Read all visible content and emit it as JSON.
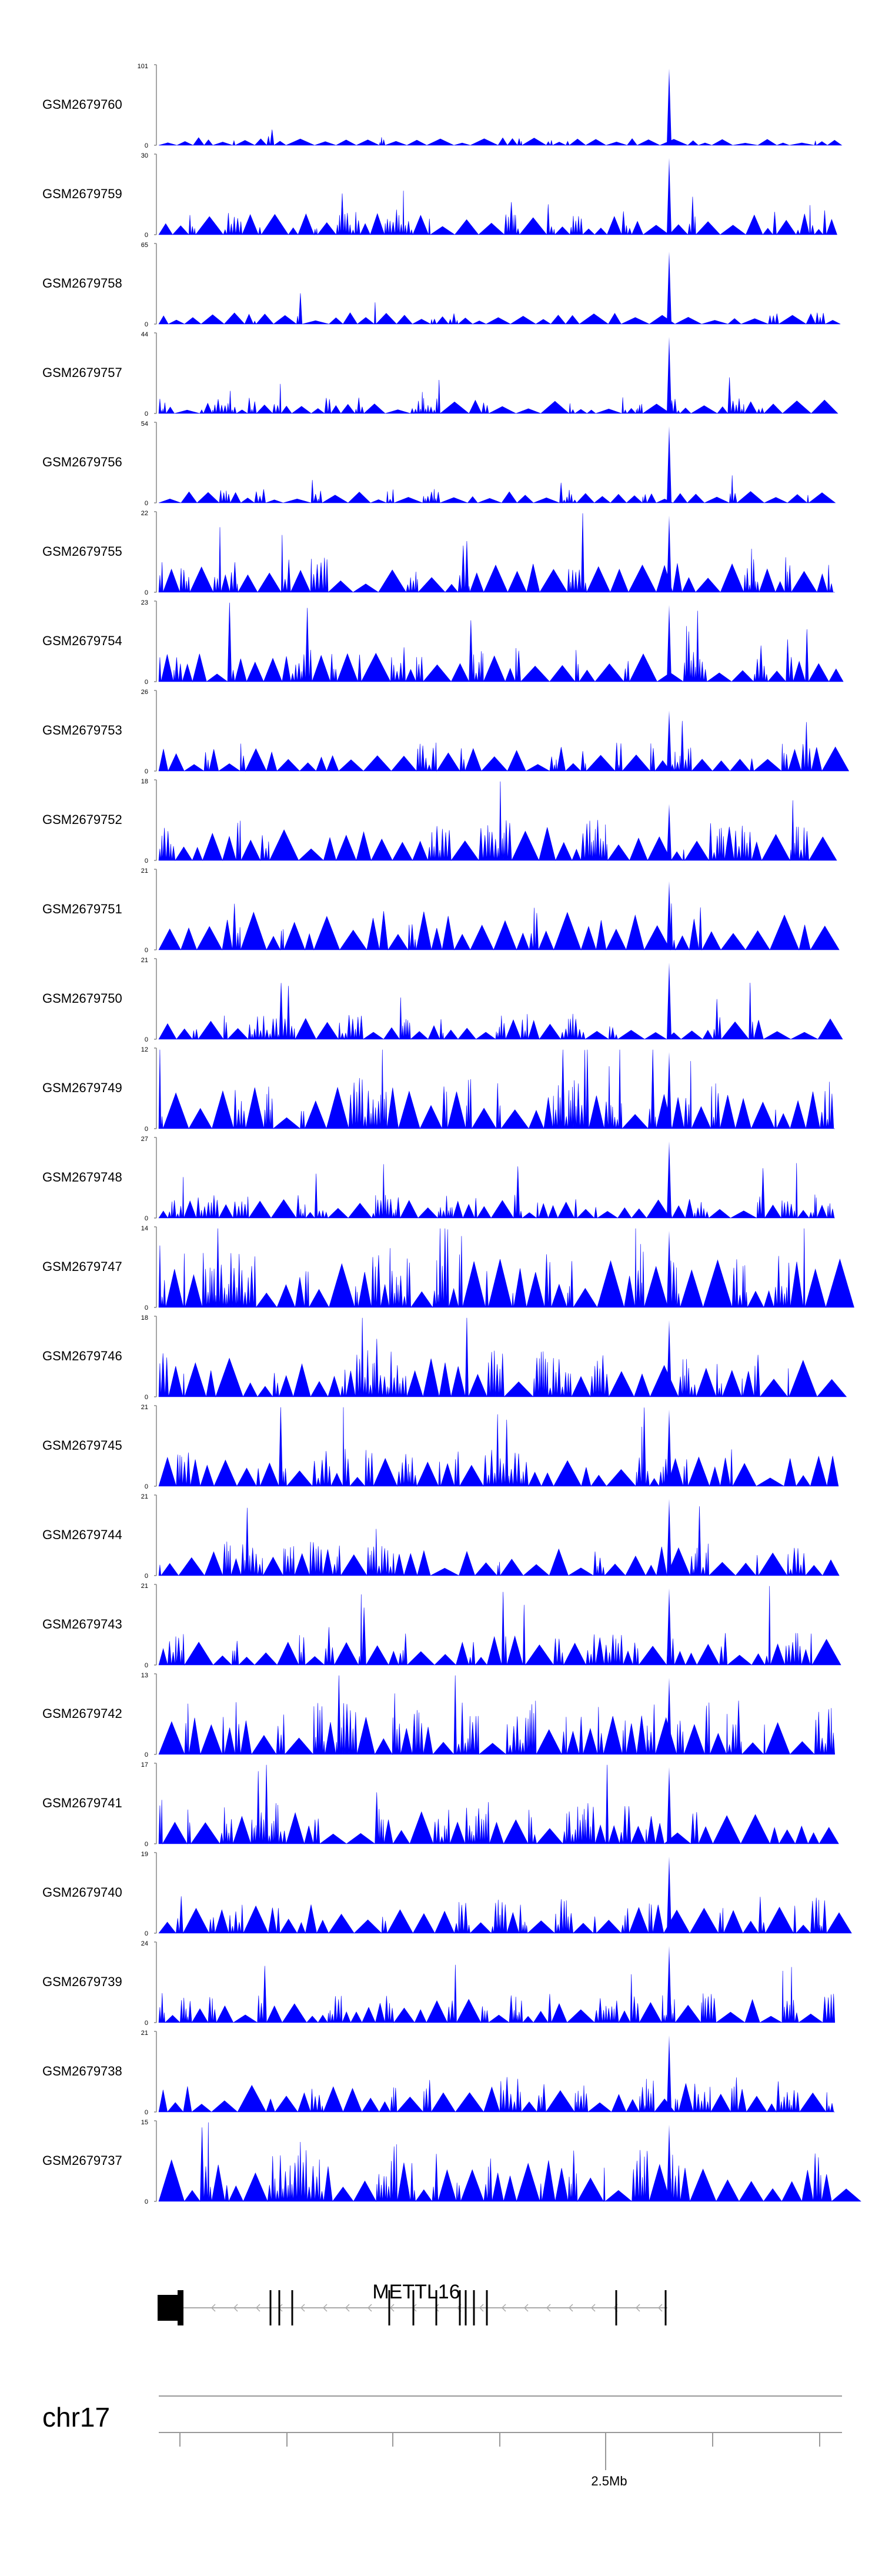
{
  "chart_data": {
    "type": "area",
    "title": "",
    "color": "#0000ff",
    "axis_color": "#888888",
    "series": [
      {
        "name": "GSM2679760",
        "ymax": 101,
        "ymin": 0,
        "peak_frac": 0.95,
        "density": 0.15,
        "bump_frac": 0.08,
        "seed": 60
      },
      {
        "name": "GSM2679759",
        "ymax": 30,
        "ymin": 0,
        "peak_frac": 0.95,
        "density": 0.45,
        "bump_frac": 0.22,
        "seed": 59
      },
      {
        "name": "GSM2679758",
        "ymax": 65,
        "ymin": 0,
        "peak_frac": 0.9,
        "density": 0.15,
        "bump_frac": 0.12,
        "seed": 58
      },
      {
        "name": "GSM2679757",
        "ymax": 44,
        "ymin": 0,
        "peak_frac": 0.95,
        "density": 0.4,
        "bump_frac": 0.14,
        "seed": 57
      },
      {
        "name": "GSM2679756",
        "ymax": 54,
        "ymin": 0,
        "peak_frac": 0.95,
        "density": 0.3,
        "bump_frac": 0.12,
        "seed": 56
      },
      {
        "name": "GSM2679755",
        "ymax": 22,
        "ymin": 0,
        "peak_frac": 0.95,
        "density": 0.5,
        "bump_frac": 0.3,
        "seed": 55
      },
      {
        "name": "GSM2679754",
        "ymax": 23,
        "ymin": 0,
        "peak_frac": 0.95,
        "density": 0.5,
        "bump_frac": 0.3,
        "seed": 54
      },
      {
        "name": "GSM2679753",
        "ymax": 26,
        "ymin": 0,
        "peak_frac": 0.75,
        "density": 0.4,
        "bump_frac": 0.25,
        "seed": 53
      },
      {
        "name": "GSM2679752",
        "ymax": 18,
        "ymin": 0,
        "peak_frac": 0.7,
        "density": 0.55,
        "bump_frac": 0.35,
        "seed": 52
      },
      {
        "name": "GSM2679751",
        "ymax": 21,
        "ymin": 0,
        "peak_frac": 0.85,
        "density": 0.25,
        "bump_frac": 0.4,
        "seed": 51
      },
      {
        "name": "GSM2679750",
        "ymax": 21,
        "ymin": 0,
        "peak_frac": 0.95,
        "density": 0.55,
        "bump_frac": 0.22,
        "seed": 50
      },
      {
        "name": "GSM2679749",
        "ymax": 12,
        "ymin": 0,
        "peak_frac": 0.95,
        "density": 0.6,
        "bump_frac": 0.45,
        "seed": 49
      },
      {
        "name": "GSM2679748",
        "ymax": 27,
        "ymin": 0,
        "peak_frac": 0.95,
        "density": 0.5,
        "bump_frac": 0.2,
        "seed": 48
      },
      {
        "name": "GSM2679747",
        "ymax": 14,
        "ymin": 0,
        "peak_frac": 0.95,
        "density": 0.65,
        "bump_frac": 0.5,
        "seed": 47
      },
      {
        "name": "GSM2679746",
        "ymax": 18,
        "ymin": 0,
        "peak_frac": 0.95,
        "density": 0.55,
        "bump_frac": 0.4,
        "seed": 46
      },
      {
        "name": "GSM2679745",
        "ymax": 21,
        "ymin": 0,
        "peak_frac": 0.95,
        "density": 0.5,
        "bump_frac": 0.32,
        "seed": 45
      },
      {
        "name": "GSM2679744",
        "ymax": 21,
        "ymin": 0,
        "peak_frac": 0.95,
        "density": 0.5,
        "bump_frac": 0.3,
        "seed": 44
      },
      {
        "name": "GSM2679743",
        "ymax": 21,
        "ymin": 0,
        "peak_frac": 0.95,
        "density": 0.5,
        "bump_frac": 0.3,
        "seed": 43
      },
      {
        "name": "GSM2679742",
        "ymax": 13,
        "ymin": 0,
        "peak_frac": 0.95,
        "density": 0.65,
        "bump_frac": 0.45,
        "seed": 42
      },
      {
        "name": "GSM2679741",
        "ymax": 17,
        "ymin": 0,
        "peak_frac": 0.95,
        "density": 0.6,
        "bump_frac": 0.35,
        "seed": 41
      },
      {
        "name": "GSM2679740",
        "ymax": 19,
        "ymin": 0,
        "peak_frac": 0.95,
        "density": 0.55,
        "bump_frac": 0.3,
        "seed": 40
      },
      {
        "name": "GSM2679739",
        "ymax": 24,
        "ymin": 0,
        "peak_frac": 0.95,
        "density": 0.5,
        "bump_frac": 0.25,
        "seed": 39
      },
      {
        "name": "GSM2679738",
        "ymax": 21,
        "ymin": 0,
        "peak_frac": 0.95,
        "density": 0.5,
        "bump_frac": 0.3,
        "seed": 38
      },
      {
        "name": "GSM2679737",
        "ymax": 15,
        "ymin": 0,
        "peak_frac": 0.95,
        "density": 0.6,
        "bump_frac": 0.45,
        "seed": 37
      }
    ],
    "gene": {
      "name": "METTL16",
      "strand": "-",
      "color": "#000000",
      "intron_color": "#aaaaaa"
    },
    "chromosome": "chr17",
    "axis_tick_labels": [
      "2.5Mb"
    ]
  }
}
